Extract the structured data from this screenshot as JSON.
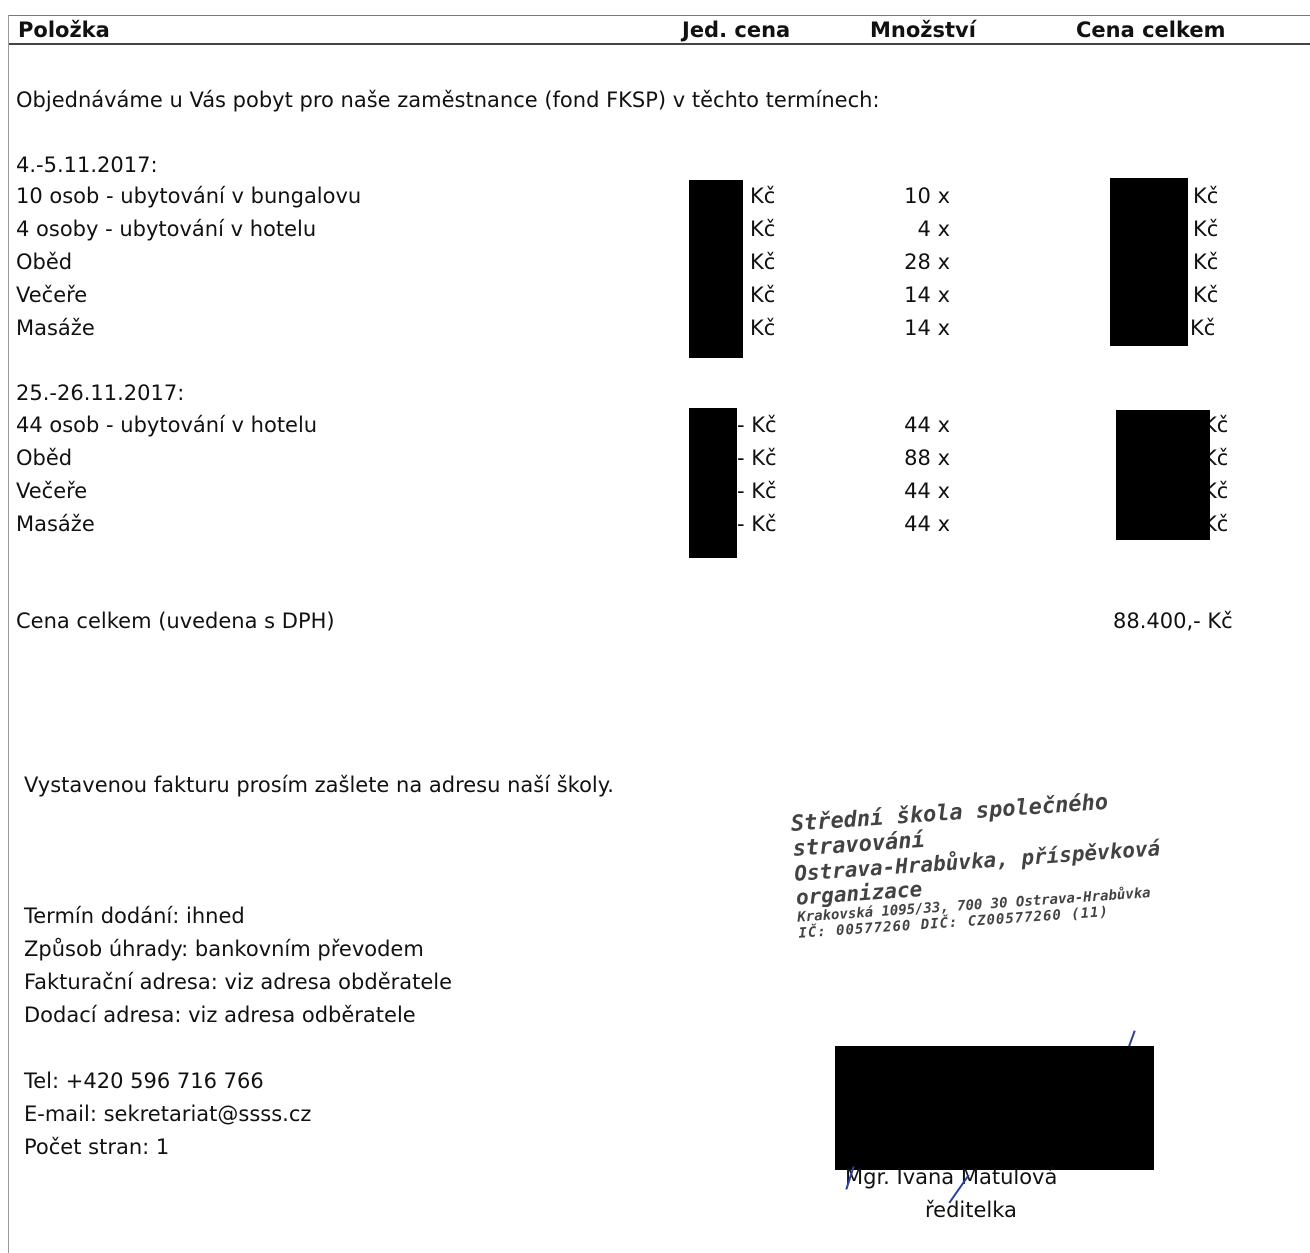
{
  "header": {
    "item": "Položka",
    "unit_price": "Jed. cena",
    "quantity": "Množství",
    "total": "Cena celkem"
  },
  "intro": "Objednáváme u Vás  pobyt pro naše zaměstnance (fond FKSP) v těchto termínech:",
  "currency": "Kč",
  "dash_currency": "- Kč",
  "groups": [
    {
      "period": "4.-5.11.2017:",
      "rows": [
        {
          "item": "10 osob - ubytování v bungalovu",
          "qty": "10 x"
        },
        {
          "item": "4 osoby - ubytování v hotelu",
          "qty": "4 x"
        },
        {
          "item": "Oběd",
          "qty": "28 x"
        },
        {
          "item": "Večeře",
          "qty": "14 x"
        },
        {
          "item": "Masáže",
          "qty": "14 x"
        }
      ]
    },
    {
      "period": "25.-26.11.2017:",
      "rows": [
        {
          "item": "44 osob - ubytování v hotelu",
          "qty": "44 x"
        },
        {
          "item": "Oběd",
          "qty": "88 x"
        },
        {
          "item": "Večeře",
          "qty": "44 x"
        },
        {
          "item": "Masáže",
          "qty": "44 x"
        }
      ]
    }
  ],
  "grand_total": {
    "label": "Cena celkem (uvedena s DPH)",
    "value": "88.400,- Kč"
  },
  "invoice_note": "Vystavenou fakturu prosím zašlete na adresu naší školy.",
  "terms": [
    "Termín dodání: ihned",
    "Způsob úhrady: bankovním převodem",
    "Fakturační adresa: viz adresa obděratele",
    "Dodací adresa: viz adresa odběratele"
  ],
  "contact": [
    "Tel: +420 596 716 766",
    "E-mail: sekretariat@ssss.cz",
    "Počet stran: 1"
  ],
  "stamp": {
    "line1": "Střední škola společného stravování",
    "line2": "Ostrava-Hrabůvka, příspěvková organizace",
    "line3": "Krakovská 1095/33, 700 30 Ostrava-Hrabůvka",
    "line4": "IČ: 00577260  DIČ: CZ00577260  (11)"
  },
  "signatory": {
    "name": "Mgr. Ivana Matulová",
    "role": "ředitelka"
  },
  "colors": {
    "redaction": "#000000",
    "signature_ink": "#2a3f9e"
  }
}
